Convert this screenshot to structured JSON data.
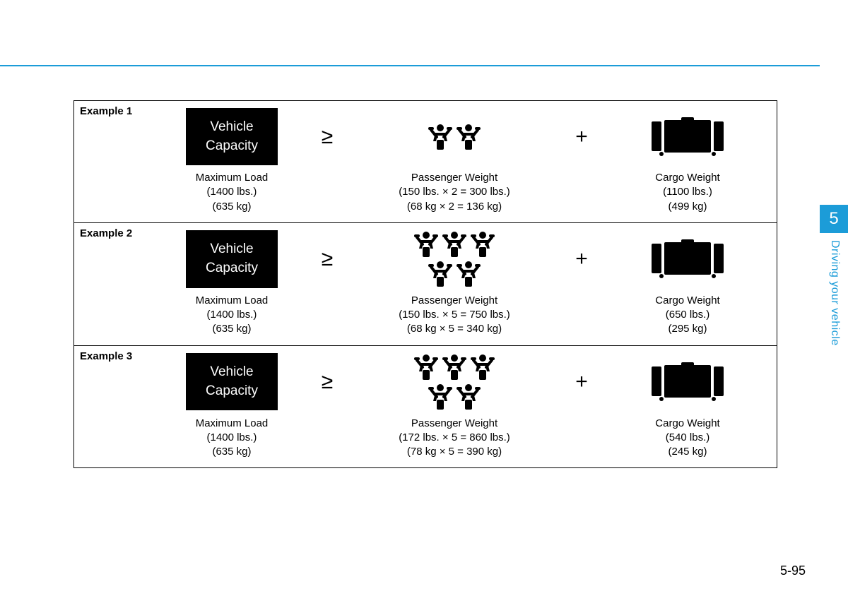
{
  "chapter_tab": "5",
  "side_label": "Driving your vehicle",
  "page_number": "5-95",
  "vehicle_capacity_label_line1": "Vehicle",
  "vehicle_capacity_label_line2": "Capacity",
  "gte": "≥",
  "plus": "+",
  "rows": [
    {
      "label": "Example 1",
      "passenger_rows": [
        2
      ],
      "max_load": {
        "title": "Maximum Load",
        "l1": "(1400 lbs.)",
        "l2": "(635 kg)"
      },
      "pass_wt": {
        "title": "Passenger Weight",
        "l1": "(150 lbs. × 2 = 300 lbs.)",
        "l2": "(68 kg × 2 = 136 kg)"
      },
      "cargo_wt": {
        "title": "Cargo Weight",
        "l1": "(1100 lbs.)",
        "l2": "(499 kg)"
      }
    },
    {
      "label": "Example 2",
      "passenger_rows": [
        3,
        2
      ],
      "max_load": {
        "title": "Maximum Load",
        "l1": "(1400 lbs.)",
        "l2": "(635 kg)"
      },
      "pass_wt": {
        "title": "Passenger Weight",
        "l1": "(150 lbs. × 5 = 750 lbs.)",
        "l2": "(68 kg × 5 = 340 kg)"
      },
      "cargo_wt": {
        "title": "Cargo Weight",
        "l1": "(650 lbs.)",
        "l2": "(295 kg)"
      }
    },
    {
      "label": "Example 3",
      "passenger_rows": [
        3,
        2
      ],
      "max_load": {
        "title": "Maximum Load",
        "l1": "(1400 lbs.)",
        "l2": "(635 kg)"
      },
      "pass_wt": {
        "title": "Passenger Weight",
        "l1": "(172 lbs. × 5 = 860 lbs.)",
        "l2": "(78 kg × 5 = 390 kg)"
      },
      "cargo_wt": {
        "title": "Cargo Weight",
        "l1": "(540 lbs.)",
        "l2": "(245 kg)"
      }
    }
  ],
  "colors": {
    "accent": "#1c9cd8"
  }
}
